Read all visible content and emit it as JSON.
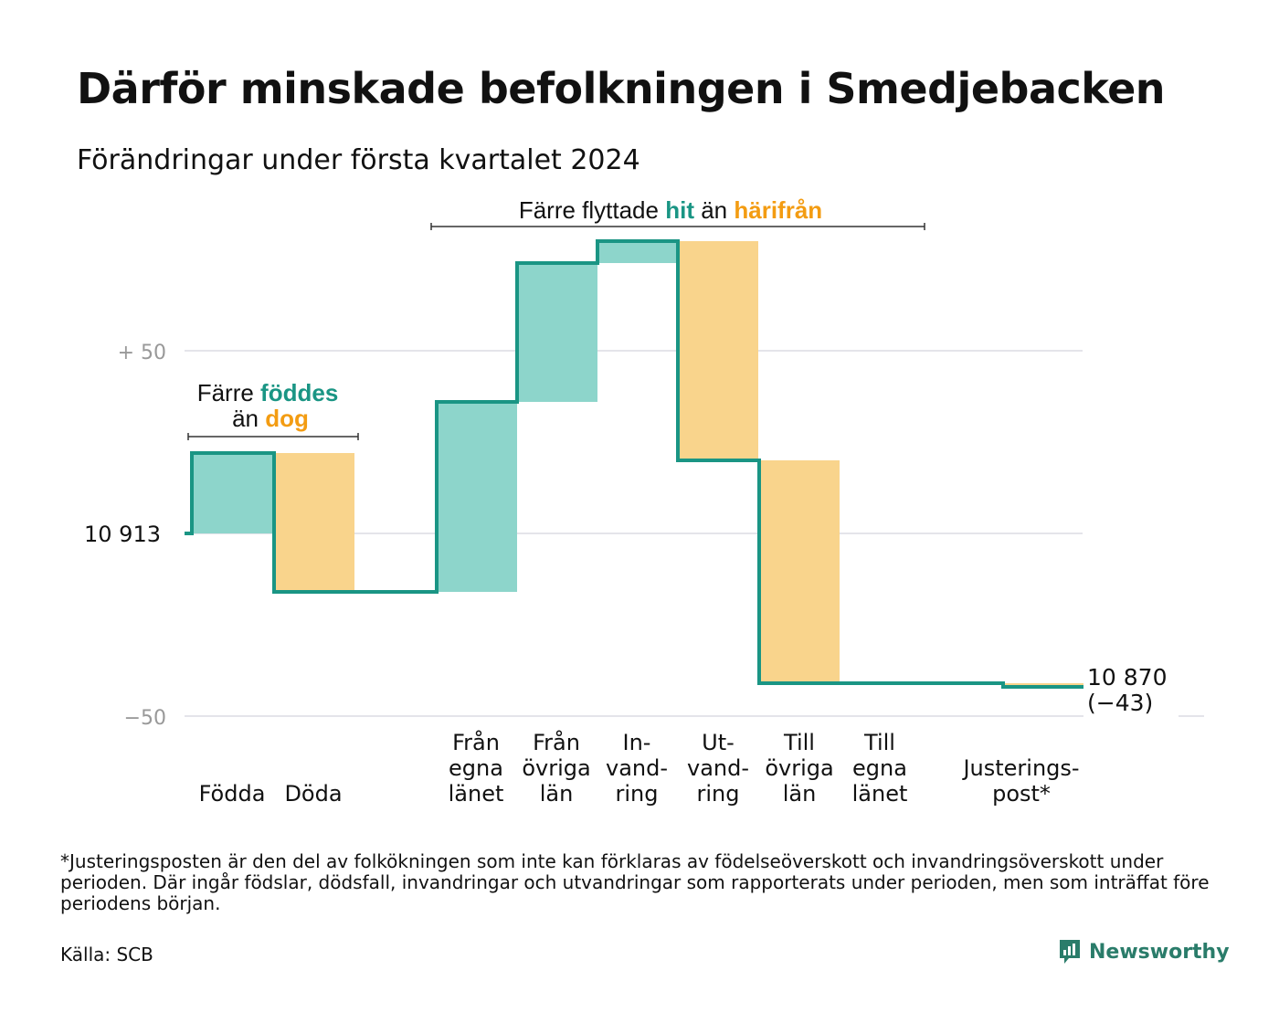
{
  "title": "Därför minskade befolkningen i Smedjebacken",
  "subtitle": "Förändringar under första kvartalet 2024",
  "colors": {
    "increase_fill": "#8dd5cb",
    "decrease_fill": "#f9d48c",
    "step_line": "#1a9584",
    "accent_teal": "#1a9584",
    "accent_orange": "#f39c12",
    "gridline": "#e4e4ea",
    "axis_text": "#999999"
  },
  "chart_data": {
    "type": "waterfall",
    "baseline_label": "10  913",
    "y_ticks": [
      {
        "label": "+  50",
        "value": 50
      },
      {
        "label": "10  913",
        "value": 0
      },
      {
        "label": "−50",
        "value": -50
      }
    ],
    "ylim": [
      -50,
      56
    ],
    "categories": [
      {
        "label": [
          "Födda"
        ],
        "value": 22
      },
      {
        "label": [
          "Döda"
        ],
        "value": -38
      },
      {
        "label": [
          "Från",
          "egna",
          "länet"
        ],
        "value": 52
      },
      {
        "label": [
          "Från",
          "övriga",
          "län"
        ],
        "value": 38
      },
      {
        "label": [
          "In-",
          "vand-",
          "ring"
        ],
        "value": 6
      },
      {
        "label": [
          "Ut-",
          "vand-",
          "ring"
        ],
        "value": -60
      },
      {
        "label": [
          "Till",
          "övriga",
          "län"
        ],
        "value": -61
      },
      {
        "label": [
          "Till",
          "egna",
          "länet"
        ],
        "value": 0
      },
      {
        "label": [
          "Justerings-",
          "post*"
        ],
        "value": -1
      }
    ],
    "end_labels": [
      "10 870",
      "(−43)"
    ],
    "brackets": [
      {
        "parts": [
          {
            "text": "Färre",
            "style": "plain"
          },
          {
            "text": "föddes",
            "style": "teal"
          }
        ],
        "parts2": [
          {
            "text": "än",
            "style": "plain"
          },
          {
            "text": "dog",
            "style": "orange"
          }
        ]
      },
      {
        "parts": [
          {
            "text": "Färre flyttade",
            "style": "plain"
          },
          {
            "text": "hit",
            "style": "teal"
          },
          {
            "text": "än",
            "style": "plain"
          },
          {
            "text": "härifrån",
            "style": "orange"
          }
        ]
      }
    ]
  },
  "footnote": "*Justeringsposten är den del av folkökningen som inte kan förklaras av födelseöverskott och invandringsöverskott under perioden. Där ingår födslar, dödsfall, invandringar och utvandringar som rapporterats under perioden, men som inträffat före periodens början.",
  "source": "Källa: SCB",
  "brand": {
    "name": "Newsworthy",
    "icon": "newsworthy-logo-icon"
  }
}
